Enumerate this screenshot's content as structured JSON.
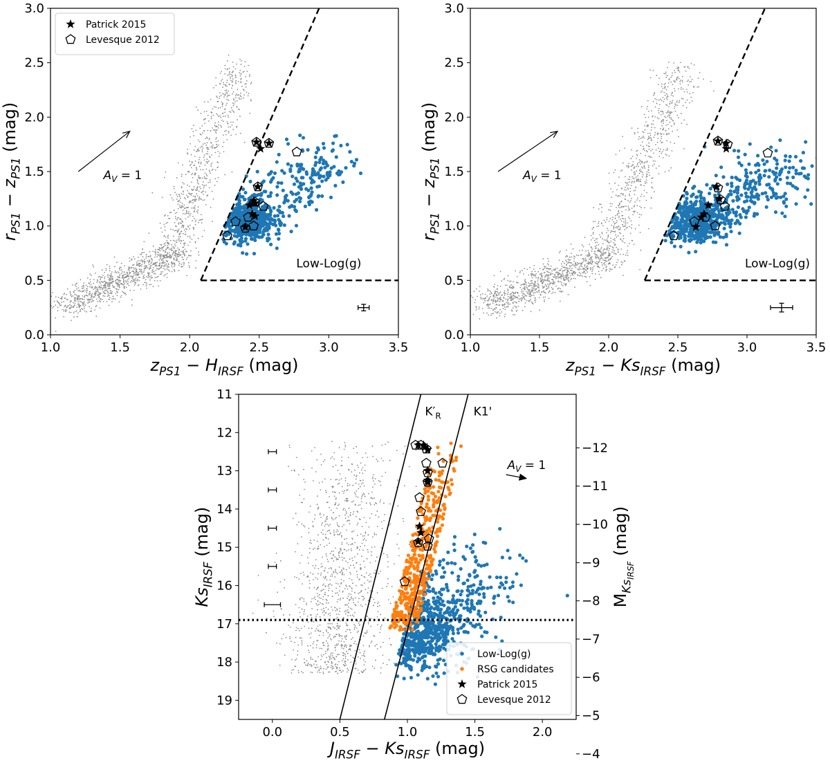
{
  "chart_data": [
    {
      "id": "top-left",
      "type": "scatter",
      "title": "",
      "xlabel_parts": [
        {
          "t": "z",
          "i": true
        },
        {
          "t": "PS1",
          "sub": true,
          "i": true
        },
        {
          "t": " − "
        },
        {
          "t": "H",
          "i": true
        },
        {
          "t": "IRSF",
          "sub": true,
          "i": true
        },
        {
          "t": " (mag)"
        }
      ],
      "ylabel_parts": [
        {
          "t": "r",
          "i": true
        },
        {
          "t": "PS1",
          "sub": true,
          "i": true
        },
        {
          "t": " − "
        },
        {
          "t": "z",
          "i": true
        },
        {
          "t": "PS1",
          "sub": true,
          "i": true
        },
        {
          "t": " (mag)"
        }
      ],
      "xlim": [
        1.0,
        3.5
      ],
      "ylim": [
        0.0,
        3.0
      ],
      "xticks": [
        1.0,
        1.5,
        2.0,
        2.5,
        3.0,
        3.5
      ],
      "xtick_labels": [
        "1.0",
        "1.5",
        "2.0",
        "2.5",
        "3.0",
        "3.5"
      ],
      "yticks": [
        0.0,
        0.5,
        1.0,
        1.5,
        2.0,
        2.5,
        3.0
      ],
      "ytick_labels": [
        "0.0",
        "0.5",
        "1.0",
        "1.5",
        "2.0",
        "2.5",
        "3.0"
      ],
      "legend": {
        "position": "top-left",
        "entries": [
          {
            "marker": "star",
            "label": "Patrick 2015"
          },
          {
            "marker": "pentagon",
            "label": "Levesque 2012"
          }
        ]
      },
      "selection_lines": [
        {
          "style": "dashed",
          "points": [
            [
              2.08,
              0.5
            ],
            [
              2.93,
              3.0
            ]
          ]
        },
        {
          "style": "dashed",
          "points": [
            [
              2.08,
              0.5
            ],
            [
              3.5,
              0.5
            ]
          ]
        }
      ],
      "region_label": {
        "text": "Low-Log(g)",
        "x": 3.0,
        "y": 0.62
      },
      "extinction_vector": {
        "from": [
          1.2,
          1.5
        ],
        "to": [
          1.57,
          1.87
        ],
        "label": "A_V = 1",
        "label_at": [
          1.38,
          1.43
        ]
      },
      "error_bar": {
        "x": 3.25,
        "y": 0.25,
        "xerr": 0.04,
        "yerr": 0.03
      },
      "clouds": {
        "field": [
          {
            "x0": 1.1,
            "y0": 0.25,
            "x1": 1.9,
            "y1": 0.75,
            "n": 950,
            "sx": 0.09,
            "sy": 0.06
          },
          {
            "x0": 1.85,
            "y0": 0.7,
            "x1": 2.35,
            "y1": 2.45,
            "n": 750,
            "sx": 0.07,
            "sy": 0.09
          }
        ],
        "low_logg": {
          "center": [
            2.4,
            1.05
          ],
          "spread": [
            0.1,
            0.1
          ],
          "n_core": 500,
          "tail_to": [
            3.05,
            1.65
          ],
          "n_tail": 260,
          "x_offset_limit": 2.08
        }
      },
      "patrick_2015": [
        [
          2.48,
          1.77
        ],
        [
          2.51,
          1.71
        ],
        [
          2.57,
          1.76
        ],
        [
          2.49,
          1.36
        ],
        [
          2.46,
          1.23
        ],
        [
          2.47,
          1.21
        ],
        [
          2.43,
          1.19
        ],
        [
          2.45,
          1.11
        ],
        [
          2.47,
          1.09
        ],
        [
          2.4,
          0.99
        ]
      ],
      "levesque_2012": [
        [
          2.48,
          1.77
        ],
        [
          2.57,
          1.76
        ],
        [
          2.77,
          1.68
        ],
        [
          2.49,
          1.36
        ],
        [
          2.47,
          1.22
        ],
        [
          2.53,
          1.18
        ],
        [
          2.42,
          1.08
        ],
        [
          2.33,
          1.04
        ],
        [
          2.46,
          1.0
        ],
        [
          2.4,
          0.98
        ],
        [
          2.27,
          0.91
        ]
      ]
    },
    {
      "id": "top-right",
      "type": "scatter",
      "title": "",
      "xlabel_parts": [
        {
          "t": "z",
          "i": true
        },
        {
          "t": "PS1",
          "sub": true,
          "i": true
        },
        {
          "t": " − "
        },
        {
          "t": "Ks",
          "i": true
        },
        {
          "t": "IRSF",
          "sub": true,
          "i": true
        },
        {
          "t": " (mag)"
        }
      ],
      "ylabel_parts": [
        {
          "t": "r",
          "i": true
        },
        {
          "t": "PS1",
          "sub": true,
          "i": true
        },
        {
          "t": " − "
        },
        {
          "t": "z",
          "i": true
        },
        {
          "t": "PS1",
          "sub": true,
          "i": true
        },
        {
          "t": " (mag)"
        }
      ],
      "xlim": [
        1.0,
        3.5
      ],
      "ylim": [
        0.0,
        3.0
      ],
      "xticks": [
        1.0,
        1.5,
        2.0,
        2.5,
        3.0,
        3.5
      ],
      "xtick_labels": [
        "1.0",
        "1.5",
        "2.0",
        "2.5",
        "3.0",
        "3.5"
      ],
      "yticks": [
        0.0,
        0.5,
        1.0,
        1.5,
        2.0,
        2.5,
        3.0
      ],
      "ytick_labels": [
        "0.0",
        "0.5",
        "1.0",
        "1.5",
        "2.0",
        "2.5",
        "3.0"
      ],
      "selection_lines": [
        {
          "style": "dashed",
          "points": [
            [
              2.26,
              0.5
            ],
            [
              3.13,
              3.0
            ]
          ]
        },
        {
          "style": "dashed",
          "points": [
            [
              2.26,
              0.5
            ],
            [
              3.5,
              0.5
            ]
          ]
        }
      ],
      "region_label": {
        "text": "Low-Log(g)",
        "x": 3.22,
        "y": 0.62
      },
      "extinction_vector": {
        "from": [
          1.2,
          1.5
        ],
        "to": [
          1.63,
          1.87
        ],
        "label": "A_V = 1",
        "label_at": [
          1.38,
          1.43
        ]
      },
      "error_bar": {
        "x": 3.25,
        "y": 0.25,
        "xerr": 0.08,
        "yerr": 0.04
      },
      "clouds": {
        "field": [
          {
            "x0": 1.1,
            "y0": 0.25,
            "x1": 2.0,
            "y1": 0.75,
            "n": 950,
            "sx": 0.1,
            "sy": 0.06
          },
          {
            "x0": 1.95,
            "y0": 0.7,
            "x1": 2.55,
            "y1": 2.45,
            "n": 750,
            "sx": 0.08,
            "sy": 0.09
          }
        ],
        "low_logg": {
          "center": [
            2.62,
            1.05
          ],
          "spread": [
            0.12,
            0.1
          ],
          "n_core": 500,
          "tail_to": [
            3.35,
            1.55
          ],
          "n_tail": 300,
          "x_offset_limit": 2.26
        }
      },
      "patrick_2015": [
        [
          2.79,
          1.78
        ],
        [
          2.85,
          1.71
        ],
        [
          2.85,
          1.76
        ],
        [
          2.78,
          1.36
        ],
        [
          2.8,
          1.25
        ],
        [
          2.72,
          1.19
        ],
        [
          2.69,
          1.11
        ],
        [
          2.67,
          1.08
        ],
        [
          2.63,
          0.99
        ]
      ],
      "levesque_2012": [
        [
          2.79,
          1.78
        ],
        [
          2.86,
          1.75
        ],
        [
          3.15,
          1.67
        ],
        [
          2.79,
          1.35
        ],
        [
          2.81,
          1.24
        ],
        [
          2.84,
          1.18
        ],
        [
          2.7,
          1.08
        ],
        [
          2.62,
          1.04
        ],
        [
          2.77,
          1.0
        ],
        [
          2.47,
          0.91
        ]
      ]
    },
    {
      "id": "bottom",
      "type": "scatter",
      "title": "",
      "xlabel_parts": [
        {
          "t": "J",
          "i": true
        },
        {
          "t": "IRSF",
          "sub": true,
          "i": true
        },
        {
          "t": " − "
        },
        {
          "t": "Ks",
          "i": true
        },
        {
          "t": "IRSF",
          "sub": true,
          "i": true
        },
        {
          "t": " (mag)"
        }
      ],
      "ylabel_parts": [
        {
          "t": "Ks",
          "i": true
        },
        {
          "t": "IRSF",
          "sub": true,
          "i": true
        },
        {
          "t": " (mag)"
        }
      ],
      "y2label_parts": [
        {
          "t": "M"
        },
        {
          "t": "Ks",
          "sub": true,
          "i": true
        },
        {
          "t": "IRSF",
          "subsub": true,
          "i": true
        },
        {
          "t": " (mag)"
        }
      ],
      "xlim": [
        -0.25,
        2.25
      ],
      "ylim_inverted": [
        19.5,
        11.0
      ],
      "xticks": [
        0.0,
        0.5,
        1.0,
        1.5,
        2.0
      ],
      "xtick_labels": [
        "0.0",
        "0.5",
        "1.0",
        "1.5",
        "2.0"
      ],
      "yticks": [
        11,
        12,
        13,
        14,
        15,
        16,
        17,
        18,
        19
      ],
      "ytick_labels": [
        "11",
        "12",
        "13",
        "14",
        "15",
        "16",
        "17",
        "18",
        "19"
      ],
      "distance_modulus": 24.4,
      "y2ticks": [
        -12,
        -11,
        -10,
        -9,
        -8,
        -7,
        -6,
        -5,
        -4
      ],
      "y2tick_labels": [
        "−12",
        "−11",
        "−10",
        "−9",
        "−8",
        "−7",
        "−6",
        "−5",
        "−4"
      ],
      "legend": {
        "position": "bottom-right",
        "entries": [
          {
            "marker": "dot-blue",
            "label": "Low-Log(g)"
          },
          {
            "marker": "dot-orange",
            "label": "RSG candidates"
          },
          {
            "marker": "star",
            "label": "Patrick 2015"
          },
          {
            "marker": "pentagon",
            "label": "Levesque 2012"
          }
        ]
      },
      "selection_lines": [
        {
          "style": "solid",
          "label": "K′_R",
          "points": [
            [
              0.5,
              19.5
            ],
            [
              1.1,
              11.0
            ]
          ]
        },
        {
          "style": "solid",
          "label": "K1'",
          "points": [
            [
              0.83,
              19.5
            ],
            [
              1.45,
              11.0
            ]
          ]
        },
        {
          "style": "dotted",
          "points": [
            [
              -0.25,
              16.9
            ],
            [
              2.25,
              16.9
            ]
          ]
        }
      ],
      "line_labels": [
        {
          "text": "K′",
          "sub": "R",
          "x": 1.13,
          "y": 11.55
        },
        {
          "text": "K1'",
          "x": 1.49,
          "y": 11.55
        }
      ],
      "extinction_vector": {
        "from": [
          1.73,
          13.1
        ],
        "to": [
          1.88,
          13.2
        ],
        "label": "A_V = 1",
        "label_at": [
          1.74,
          12.95
        ]
      },
      "error_bars": [
        {
          "x": 0.0,
          "y": 12.5,
          "xerr": 0.03
        },
        {
          "x": 0.0,
          "y": 13.5,
          "xerr": 0.03
        },
        {
          "x": 0.0,
          "y": 14.5,
          "xerr": 0.03
        },
        {
          "x": 0.0,
          "y": 15.5,
          "xerr": 0.03
        },
        {
          "x": 0.0,
          "y": 16.5,
          "xerr": 0.06
        }
      ],
      "clouds": {
        "field": [
          {
            "x0": 0.6,
            "y0": 12.2,
            "x1": 0.6,
            "y1": 18.3,
            "n": 1350,
            "sx": 0.17,
            "sy": 0.0
          }
        ],
        "low_logg": {
          "center": [
            1.05,
            17.3
          ],
          "spread": [
            0.16,
            0.45
          ],
          "n_core": 650,
          "tail_to": [
            1.6,
            15.5
          ],
          "n_tail": 340
        },
        "rsg": {
          "x_range": [
            0.93,
            1.25
          ],
          "y_range": [
            12.2,
            17.2
          ],
          "n": 420
        }
      },
      "patrick_2015": [
        [
          1.08,
          12.33
        ],
        [
          1.12,
          12.33
        ],
        [
          1.13,
          12.38
        ],
        [
          1.15,
          12.45
        ],
        [
          1.15,
          13.0
        ],
        [
          1.15,
          13.25
        ],
        [
          1.15,
          13.3
        ],
        [
          1.09,
          14.45
        ],
        [
          1.1,
          14.62
        ],
        [
          1.08,
          14.85
        ]
      ],
      "levesque_2012": [
        [
          1.06,
          12.33
        ],
        [
          1.1,
          12.33
        ],
        [
          1.14,
          12.43
        ],
        [
          1.14,
          12.8
        ],
        [
          1.26,
          12.8
        ],
        [
          1.15,
          13.05
        ],
        [
          1.15,
          13.3
        ],
        [
          1.09,
          13.7
        ],
        [
          1.1,
          14.07
        ],
        [
          1.15,
          14.97
        ],
        [
          1.16,
          14.78
        ],
        [
          1.08,
          14.88
        ],
        [
          0.98,
          15.9
        ]
      ]
    }
  ]
}
